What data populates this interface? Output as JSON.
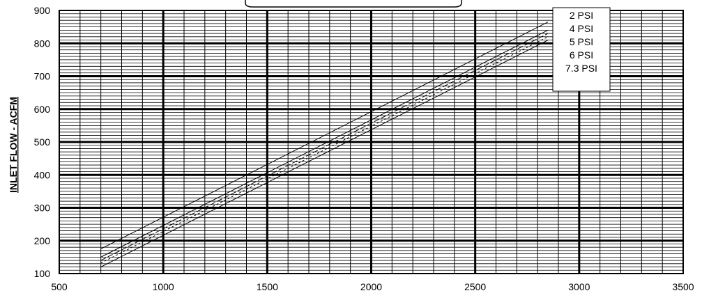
{
  "chart_data": {
    "type": "line",
    "title": "",
    "xlabel": "",
    "ylabel": "INLET FLOW - ACFM",
    "xlim": [
      500,
      3500
    ],
    "ylim": [
      100,
      900
    ],
    "x_ticks": [
      "500",
      "1000",
      "1500",
      "2000",
      "2500",
      "3000",
      "3500"
    ],
    "y_ticks": [
      "100",
      "200",
      "300",
      "400",
      "500",
      "600",
      "700",
      "800",
      "900"
    ],
    "grid": true,
    "legend_position": "top-right",
    "series": [
      {
        "name": "2 PSI",
        "x": [
          700,
          2850
        ],
        "y": [
          175,
          865
        ],
        "dash": ""
      },
      {
        "name": "4 PSI",
        "x": [
          700,
          2850
        ],
        "y": [
          150,
          840
        ],
        "dash": ""
      },
      {
        "name": "5 PSI",
        "x": [
          700,
          2850
        ],
        "y": [
          140,
          830
        ],
        "dash": "8,3"
      },
      {
        "name": "6 PSI",
        "x": [
          700,
          2850
        ],
        "y": [
          132,
          820
        ],
        "dash": "3,3"
      },
      {
        "name": "7.3 PSI",
        "x": [
          700,
          2850
        ],
        "y": [
          120,
          810
        ],
        "dash": ""
      }
    ]
  }
}
